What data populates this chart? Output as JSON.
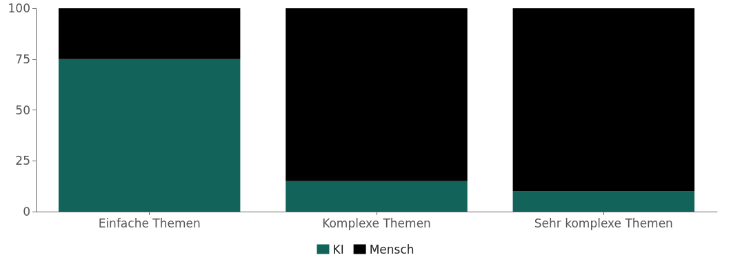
{
  "chart_data": {
    "type": "bar",
    "stacked": true,
    "categories": [
      "Einfache Themen",
      "Komplexe Themen",
      "Sehr komplexe Themen"
    ],
    "series": [
      {
        "name": "KI",
        "color": "#12635a",
        "values": [
          75,
          15,
          10
        ]
      },
      {
        "name": "Mensch",
        "color": "#000000",
        "values": [
          25,
          85,
          90
        ]
      }
    ],
    "ylim": [
      0,
      100
    ],
    "yticks": [
      0,
      25,
      50,
      75,
      100
    ],
    "grid": false,
    "legend": "bottom"
  }
}
